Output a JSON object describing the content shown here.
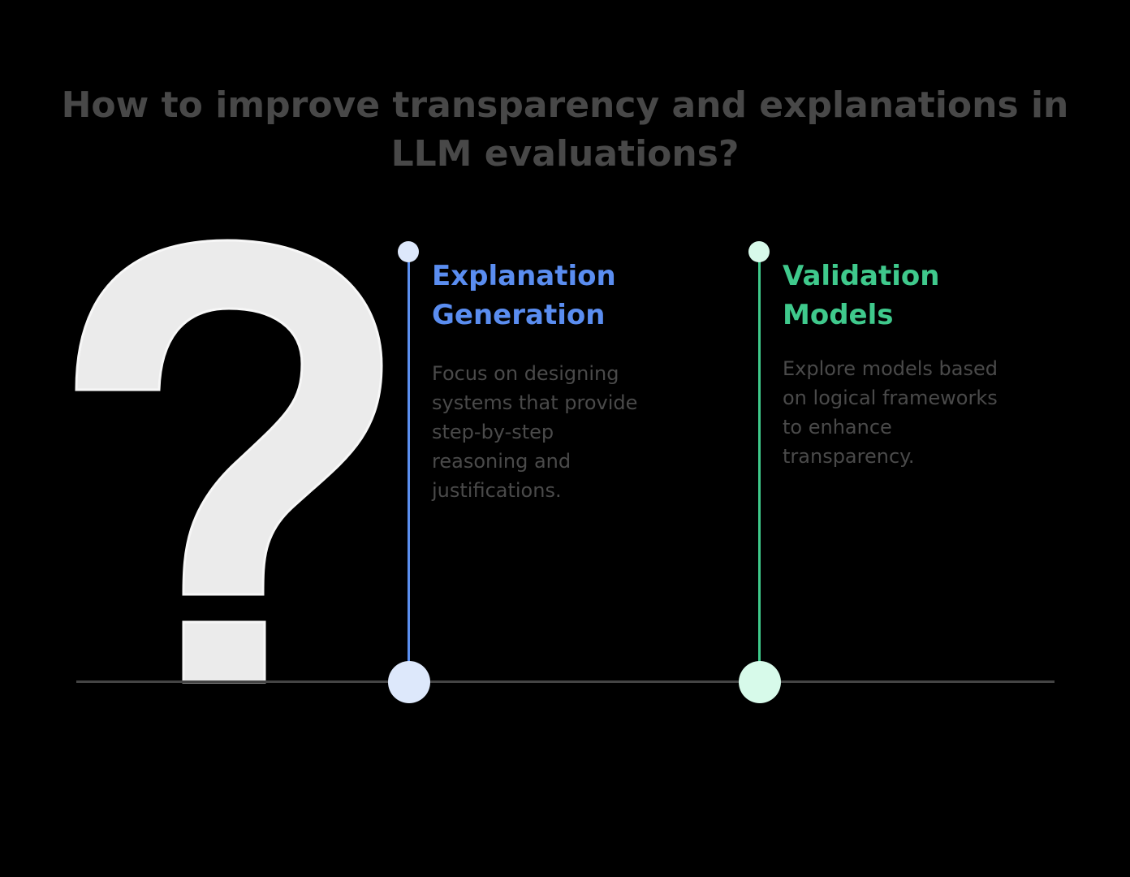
{
  "title": "How to improve transparency and explanations in LLM evaluations?",
  "colors": {
    "background": "#000000",
    "title_text": "#484848",
    "question_mark_fill": "#ebebeb",
    "baseline": "#444444",
    "body_text": "#4a4a4a"
  },
  "icon": "question-mark-icon",
  "items": [
    {
      "title_lines": [
        "Explanation",
        "Generation"
      ],
      "description": "Focus on designing\nsystems that provide\nstep-by-step\nreasoning and\njustifications.",
      "accent": "#5a8df0",
      "accent_light": "#dde8fb"
    },
    {
      "title_lines": [
        "Validation",
        "Models"
      ],
      "description": "Explore models based\non logical frameworks\nto enhance\ntransparency.",
      "accent": "#3fc98c",
      "accent_light": "#d7faea"
    }
  ]
}
